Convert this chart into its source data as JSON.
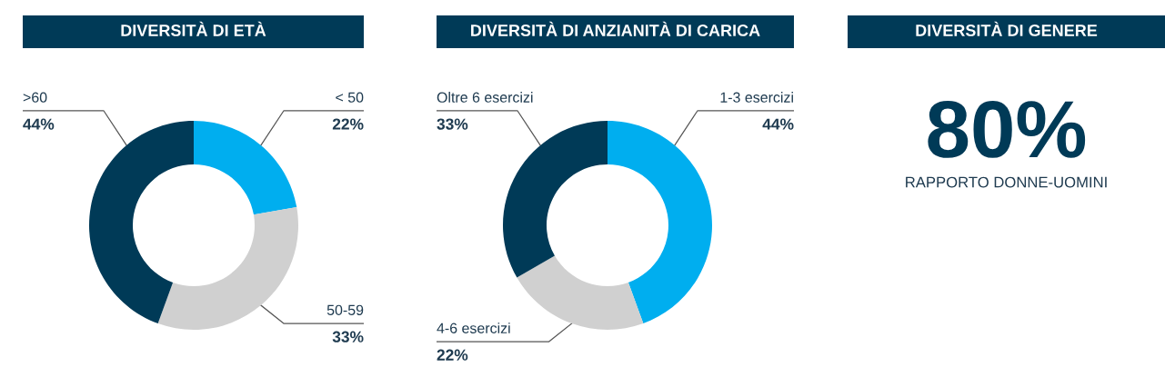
{
  "chart_data": [
    {
      "type": "donut",
      "title": "DIVERSITÀ DI ETÀ",
      "categories": [
        "< 50",
        "50-59",
        ">60"
      ],
      "values": [
        22,
        33,
        44
      ],
      "value_labels": [
        "22%",
        "33%",
        "44%"
      ],
      "colors": [
        "#00aeef",
        "#d0d0d0",
        "#003a57"
      ]
    },
    {
      "type": "donut",
      "title": "DIVERSITÀ DI ANZIANITÀ DI CARICA",
      "categories": [
        "1-3 esercizi",
        "4-6 esercizi",
        "Oltre 6 esercizi"
      ],
      "values": [
        44,
        22,
        33
      ],
      "value_labels": [
        "44%",
        "22%",
        "33%"
      ],
      "colors": [
        "#00aeef",
        "#d0d0d0",
        "#003a57"
      ]
    },
    {
      "type": "other",
      "title": "DIVERSITÀ DI GENERE",
      "annotations": [
        "80%",
        "RAPPORTO DONNE-UOMINI"
      ]
    }
  ]
}
